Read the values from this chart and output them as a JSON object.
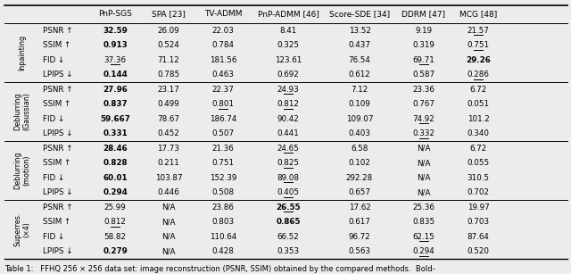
{
  "col_headers": [
    "PnP-SGS",
    "SPA [23]",
    "TV-ADMM",
    "PnP-ADMM [46]",
    "Score-SDE [34]",
    "DDRM [47]",
    "MCG [48]"
  ],
  "groups": [
    {
      "label": "Inpainting",
      "metrics": [
        "PSNR ↑",
        "SSIM ↑",
        "FID ↓",
        "LPIPS ↓"
      ],
      "values": [
        [
          "32.59",
          "26.09",
          "22.03",
          "8.41",
          "13.52",
          "9.19",
          "21.57"
        ],
        [
          "0.913",
          "0.524",
          "0.784",
          "0.325",
          "0.437",
          "0.319",
          "0.751"
        ],
        [
          "37.36",
          "71.12",
          "181.56",
          "123.61",
          "76.54",
          "69.71",
          "29.26"
        ],
        [
          "0.144",
          "0.785",
          "0.463",
          "0.692",
          "0.612",
          "0.587",
          "0.286"
        ]
      ],
      "bold": [
        [
          true,
          false,
          false,
          false,
          false,
          false,
          false
        ],
        [
          true,
          false,
          false,
          false,
          false,
          false,
          false
        ],
        [
          false,
          false,
          false,
          false,
          false,
          false,
          true
        ],
        [
          true,
          false,
          false,
          false,
          false,
          false,
          false
        ]
      ],
      "underline": [
        [
          false,
          false,
          false,
          false,
          false,
          false,
          true
        ],
        [
          false,
          false,
          false,
          false,
          false,
          false,
          true
        ],
        [
          true,
          false,
          false,
          false,
          false,
          true,
          false
        ],
        [
          false,
          false,
          false,
          false,
          false,
          false,
          true
        ]
      ]
    },
    {
      "label": "Deblurring\n(Gaussian)",
      "metrics": [
        "PSNR ↑",
        "SSIM ↑",
        "FID ↓",
        "LPIPS ↓"
      ],
      "values": [
        [
          "27.96",
          "23.17",
          "22.37",
          "24.93",
          "7.12",
          "23.36",
          "6.72"
        ],
        [
          "0.837",
          "0.499",
          "0.801",
          "0.812",
          "0.109",
          "0.767",
          "0.051"
        ],
        [
          "59.667",
          "78.67",
          "186.74",
          "90.42",
          "109.07",
          "74.92",
          "101.2"
        ],
        [
          "0.331",
          "0.452",
          "0.507",
          "0.441",
          "0.403",
          "0.332",
          "0.340"
        ]
      ],
      "bold": [
        [
          true,
          false,
          false,
          false,
          false,
          false,
          false
        ],
        [
          true,
          false,
          false,
          false,
          false,
          false,
          false
        ],
        [
          true,
          false,
          false,
          false,
          false,
          false,
          false
        ],
        [
          true,
          false,
          false,
          false,
          false,
          false,
          false
        ]
      ],
      "underline": [
        [
          false,
          false,
          false,
          true,
          false,
          false,
          false
        ],
        [
          false,
          false,
          true,
          true,
          false,
          false,
          false
        ],
        [
          false,
          false,
          false,
          false,
          false,
          true,
          false
        ],
        [
          false,
          false,
          false,
          false,
          false,
          true,
          false
        ]
      ]
    },
    {
      "label": "Deblurring\n(motion)",
      "metrics": [
        "PSNR ↑",
        "SSIM ↑",
        "FID ↓",
        "LPIPS ↓"
      ],
      "values": [
        [
          "28.46",
          "17.73",
          "21.36",
          "24.65",
          "6.58",
          "N/A",
          "6.72"
        ],
        [
          "0.828",
          "0.211",
          "0.751",
          "0.825",
          "0.102",
          "N/A",
          "0.055"
        ],
        [
          "60.01",
          "103.87",
          "152.39",
          "89.08",
          "292.28",
          "N/A",
          "310.5"
        ],
        [
          "0.294",
          "0.446",
          "0.508",
          "0.405",
          "0.657",
          "N/A",
          "0.702"
        ]
      ],
      "bold": [
        [
          true,
          false,
          false,
          false,
          false,
          false,
          false
        ],
        [
          true,
          false,
          false,
          false,
          false,
          false,
          false
        ],
        [
          true,
          false,
          false,
          false,
          false,
          false,
          false
        ],
        [
          true,
          false,
          false,
          false,
          false,
          false,
          false
        ]
      ],
      "underline": [
        [
          false,
          false,
          false,
          true,
          false,
          false,
          false
        ],
        [
          false,
          false,
          false,
          true,
          false,
          false,
          false
        ],
        [
          false,
          false,
          false,
          true,
          false,
          false,
          false
        ],
        [
          false,
          false,
          false,
          true,
          false,
          false,
          false
        ]
      ]
    },
    {
      "label": "Superres.\n(×4)",
      "metrics": [
        "PSNR ↑",
        "SSIM ↑",
        "FID ↓",
        "LPIPS ↓"
      ],
      "values": [
        [
          "25.99",
          "N/A",
          "23.86",
          "26.55",
          "17.62",
          "25.36",
          "19.97"
        ],
        [
          "0.812",
          "N/A",
          "0.803",
          "0.865",
          "0.617",
          "0.835",
          "0.703"
        ],
        [
          "58.82",
          "N/A",
          "110.64",
          "66.52",
          "96.72",
          "62.15",
          "87.64"
        ],
        [
          "0.279",
          "N/A",
          "0.428",
          "0.353",
          "0.563",
          "0.294",
          "0.520"
        ]
      ],
      "bold": [
        [
          false,
          false,
          false,
          true,
          false,
          false,
          false
        ],
        [
          false,
          false,
          false,
          true,
          false,
          false,
          false
        ],
        [
          false,
          false,
          false,
          false,
          false,
          false,
          false
        ],
        [
          true,
          false,
          false,
          false,
          false,
          false,
          false
        ]
      ],
      "underline": [
        [
          false,
          false,
          false,
          true,
          false,
          false,
          false
        ],
        [
          true,
          false,
          false,
          false,
          false,
          false,
          false
        ],
        [
          false,
          false,
          false,
          false,
          false,
          true,
          false
        ],
        [
          false,
          false,
          false,
          false,
          false,
          true,
          false
        ]
      ]
    }
  ],
  "caption": "Table 1:   FFHQ 256 × 256 data set: image reconstruction (PSNR, SSIM) obtained by the compared methods.  Bold-",
  "bg_color": "#ececec",
  "fontsize_header": 6.5,
  "fontsize_data": 6.3,
  "fontsize_group": 5.8,
  "fontsize_caption": 6.0
}
